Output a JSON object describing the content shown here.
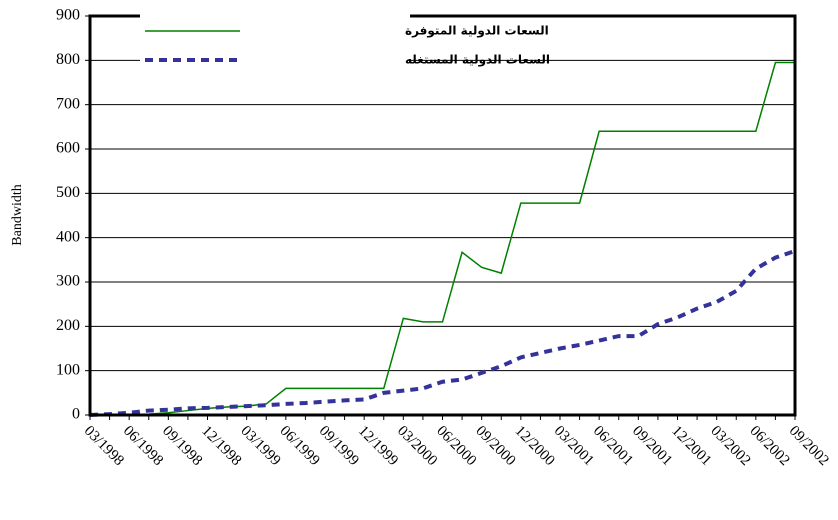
{
  "chart_data": {
    "type": "line",
    "y_label": "Bandwidth",
    "categories": [
      "03/1998",
      null,
      "06/1998",
      null,
      "09/1998",
      null,
      "12/1998",
      null,
      "03/1999",
      null,
      "06/1999",
      null,
      "09/1999",
      null,
      "12/1999",
      null,
      "03/2000",
      null,
      "06/2000",
      null,
      "09/2000",
      null,
      "12/2000",
      null,
      "03/2001",
      null,
      "06/2001",
      null,
      "09/2001",
      null,
      "12/2001",
      null,
      "03/2002",
      null,
      "06/2002",
      null,
      "09/2002"
    ],
    "series": [
      {
        "name": "السعات الدولية المتوفرة",
        "color": "#008000",
        "dashed": false,
        "values": [
          0,
          0,
          0,
          2,
          5,
          10,
          15,
          18,
          20,
          25,
          60,
          60,
          60,
          60,
          60,
          60,
          218,
          210,
          210,
          367,
          333,
          320,
          478,
          478,
          478,
          478,
          640,
          640,
          640,
          640,
          640,
          640,
          640,
          640,
          640,
          795,
          795
        ]
      },
      {
        "name": "السعات الدولية المستغله",
        "color": "#333399",
        "dashed": true,
        "values": [
          0,
          2,
          5,
          10,
          12,
          15,
          16,
          18,
          20,
          22,
          25,
          27,
          30,
          33,
          35,
          50,
          55,
          60,
          75,
          80,
          95,
          110,
          130,
          140,
          150,
          158,
          168,
          178,
          178,
          205,
          220,
          240,
          255,
          280,
          330,
          355,
          370
        ]
      }
    ],
    "ylim": [
      0,
      900
    ],
    "yticks": [
      0,
      100,
      200,
      300,
      400,
      500,
      600,
      700,
      800,
      900
    ],
    "grid": true
  }
}
